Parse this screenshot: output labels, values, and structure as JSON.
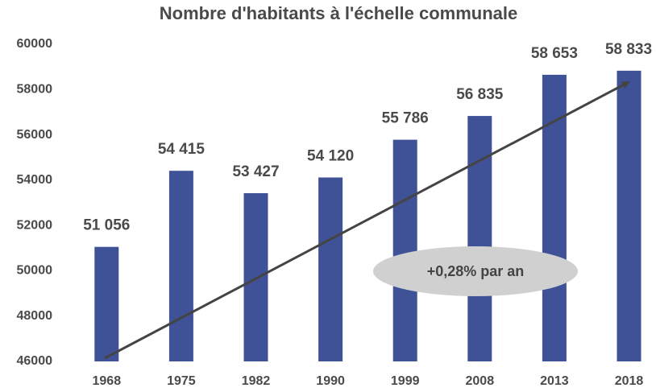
{
  "chart_data": {
    "type": "bar",
    "title": "Nombre d'habitants à l'échelle communale",
    "categories": [
      "1968",
      "1975",
      "1982",
      "1990",
      "1999",
      "2008",
      "2013",
      "2018"
    ],
    "values": [
      51056,
      54415,
      53427,
      54120,
      55786,
      56835,
      58653,
      58833
    ],
    "value_labels": [
      "51 056",
      "54 415",
      "53 427",
      "54 120",
      "55 786",
      "56 835",
      "58 653",
      "58 833"
    ],
    "color": "#3f5298",
    "ylim": [
      46000,
      60000
    ],
    "yticks": [
      46000,
      48000,
      50000,
      52000,
      54000,
      56000,
      58000,
      60000
    ],
    "grid": false,
    "annotation": "+0,28% par an"
  }
}
